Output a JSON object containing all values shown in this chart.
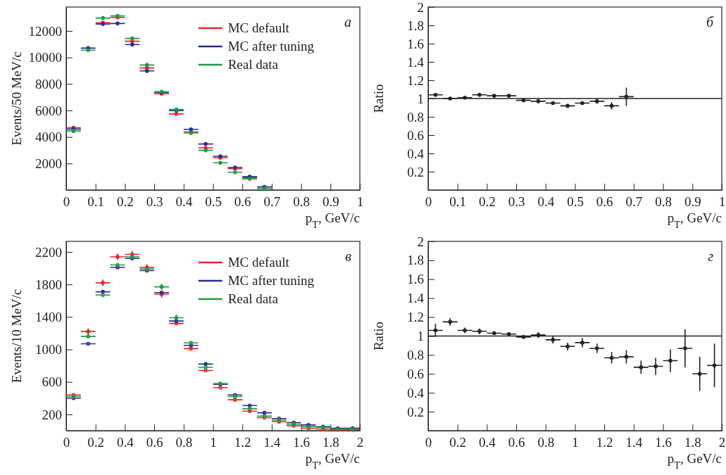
{
  "chart_data": [
    {
      "type": "scatter",
      "marker": "circle",
      "xlabel": "p$_{T}$, GeV/c",
      "ylabel": "Events/50 MeV/c",
      "annotations": [
        "а"
      ],
      "legend": "top right",
      "xlim": [
        0,
        1
      ],
      "xticks": [
        0,
        0.1,
        0.2,
        0.3,
        0.4,
        0.5,
        0.6,
        0.7,
        0.8,
        0.9,
        1
      ],
      "ylim": [
        0,
        13800
      ],
      "yticks": [
        2000,
        4000,
        6000,
        8000,
        10000,
        12000
      ],
      "x": [
        0.025,
        0.075,
        0.125,
        0.175,
        0.225,
        0.275,
        0.325,
        0.375,
        0.425,
        0.475,
        0.525,
        0.575,
        0.625,
        0.675
      ],
      "series": [
        {
          "name": "MC default",
          "color": "#e8262a",
          "values": [
            4700,
            null,
            12620,
            13020,
            11220,
            9200,
            7260,
            5740,
            4380,
            3170,
            2430,
            1610,
            920,
            null
          ],
          "errors": [
            150,
            null,
            150,
            150,
            150,
            150,
            null,
            null,
            100,
            100,
            100,
            null,
            null,
            null
          ],
          "xerrors": [
            0.025,
            null,
            0.025,
            0.025,
            0.025,
            0.025,
            0.025,
            0.025,
            0.025,
            0.025,
            0.025,
            0.025,
            0.025,
            null
          ]
        },
        {
          "name": "MC after tuning",
          "color": "#2b2d8f",
          "values": [
            4600,
            10700,
            12520,
            12560,
            10970,
            8980,
            7350,
            5990,
            4580,
            3470,
            2550,
            1700,
            1000,
            230
          ],
          "errors": [
            150,
            null,
            150,
            150,
            150,
            150,
            null,
            null,
            100,
            100,
            100,
            null,
            null,
            null
          ],
          "xerrors": [
            0.025,
            0.025,
            0.025,
            0.025,
            0.025,
            0.025,
            0.025,
            0.025,
            0.025,
            0.025,
            0.025,
            0.025,
            0.025,
            0.025
          ]
        },
        {
          "name": "Real data",
          "color": "#1f9a48",
          "values": [
            4450,
            10550,
            12970,
            13130,
            11430,
            9430,
            7410,
            6080,
            4300,
            2990,
            2060,
            1340,
            840,
            120
          ],
          "errors": [
            150,
            null,
            150,
            150,
            150,
            150,
            null,
            null,
            100,
            100,
            100,
            null,
            null,
            null
          ],
          "xerrors": [
            0.025,
            0.025,
            0.025,
            0.025,
            0.025,
            0.025,
            0.025,
            0.025,
            0.025,
            0.025,
            0.025,
            0.025,
            0.025,
            0.025
          ]
        }
      ]
    },
    {
      "type": "scatter",
      "marker": "circle",
      "xlabel": "p$_{T}$, GeV/c",
      "ylabel": "Ratio",
      "annotations": [
        "б"
      ],
      "xlim": [
        0,
        1
      ],
      "xticks": [
        0,
        0.1,
        0.2,
        0.3,
        0.4,
        0.5,
        0.6,
        0.7,
        0.8,
        0.9,
        1
      ],
      "ylim": [
        0,
        2
      ],
      "yticks": [
        0.2,
        0.4,
        0.6,
        0.8,
        1,
        1.2,
        1.4,
        1.6,
        1.8,
        2
      ],
      "ref_lines": [
        {
          "axis": "y",
          "value": 1,
          "color": "#222222"
        }
      ],
      "x": [
        0.025,
        0.075,
        0.125,
        0.175,
        0.225,
        0.275,
        0.325,
        0.375,
        0.425,
        0.475,
        0.525,
        0.575,
        0.625,
        0.675
      ],
      "series": [
        {
          "color": "#222222",
          "values": [
            1.04,
            1.0,
            1.01,
            1.04,
            1.03,
            1.03,
            0.98,
            0.97,
            0.95,
            0.92,
            0.95,
            0.97,
            0.92,
            1.02
          ],
          "errors": [
            0.02,
            0.015,
            0.015,
            0.015,
            0.015,
            0.015,
            0.015,
            0.015,
            0.015,
            0.02,
            0.02,
            0.025,
            0.04,
            0.1
          ],
          "xerrors": [
            0.025,
            0.025,
            0.025,
            0.025,
            0.025,
            0.025,
            0.025,
            0.025,
            0.025,
            0.025,
            0.025,
            0.025,
            0.025,
            0.025
          ]
        }
      ]
    },
    {
      "type": "scatter",
      "marker": "circle",
      "xlabel": "p$_{T}$, GeV/c",
      "ylabel": "Events/10 MeV/c",
      "annotations": [
        "в"
      ],
      "legend": "top right",
      "xlim": [
        0,
        2
      ],
      "xticks": [
        0,
        0.2,
        0.4,
        0.6,
        0.8,
        1,
        1.2,
        1.4,
        1.6,
        1.8,
        2
      ],
      "ylim": [
        0,
        2330
      ],
      "yticks": [
        200,
        600,
        1000,
        1400,
        1800,
        2200
      ],
      "x": [
        0.05,
        0.15,
        0.25,
        0.35,
        0.45,
        0.55,
        0.65,
        0.75,
        0.85,
        0.95,
        1.05,
        1.15,
        1.25,
        1.35,
        1.45,
        1.55,
        1.65,
        1.75,
        1.85,
        1.95
      ],
      "series": [
        {
          "name": "MC default",
          "color": "#e8262a",
          "values": [
            440,
            1220,
            1820,
            2140,
            2170,
            2010,
            1680,
            1320,
            1010,
            740,
            530,
            380,
            240,
            160,
            110,
            60,
            30,
            20,
            10,
            10
          ],
          "errors": [
            null,
            40,
            40,
            40,
            40,
            40,
            40,
            null,
            null,
            null,
            null,
            null,
            null,
            null,
            null,
            null,
            null,
            null,
            null,
            null
          ],
          "xerrors": [
            0.05,
            0.05,
            0.05,
            0.05,
            0.05,
            0.05,
            0.05,
            0.05,
            0.05,
            0.05,
            0.05,
            0.05,
            0.05,
            0.05,
            0.05,
            0.05,
            0.05,
            0.05,
            0.05,
            0.05
          ]
        },
        {
          "name": "MC after tuning",
          "color": "#2b2d8f",
          "values": [
            400,
            1070,
            1710,
            2010,
            2120,
            1970,
            1700,
            1350,
            1050,
            820,
            570,
            440,
            310,
            220,
            150,
            100,
            70,
            50,
            30,
            30
          ],
          "errors": [
            null,
            null,
            null,
            null,
            null,
            null,
            null,
            null,
            null,
            null,
            null,
            null,
            null,
            null,
            null,
            null,
            null,
            null,
            null,
            null
          ],
          "xerrors": [
            0.05,
            0.05,
            0.05,
            0.05,
            0.05,
            0.05,
            0.05,
            0.05,
            0.05,
            0.05,
            0.05,
            0.05,
            0.05,
            0.05,
            0.05,
            0.05,
            0.05,
            0.05,
            0.05,
            0.05
          ]
        },
        {
          "name": "Real data",
          "color": "#1f9a48",
          "values": [
            420,
            1160,
            1670,
            2040,
            2140,
            1990,
            1770,
            1390,
            1080,
            780,
            580,
            420,
            270,
            180,
            130,
            80,
            50,
            40,
            20,
            20
          ],
          "errors": [
            null,
            null,
            null,
            null,
            null,
            null,
            40,
            40,
            null,
            null,
            null,
            null,
            null,
            null,
            null,
            null,
            null,
            null,
            null,
            null
          ],
          "xerrors": [
            0.05,
            0.05,
            0.05,
            0.05,
            0.05,
            0.05,
            0.05,
            0.05,
            0.05,
            0.05,
            0.05,
            0.05,
            0.05,
            0.05,
            0.05,
            0.05,
            0.05,
            0.05,
            0.05,
            0.05
          ]
        }
      ]
    },
    {
      "type": "scatter",
      "marker": "circle",
      "xlabel": "p$_{T}$, GeV/c",
      "ylabel": "Ratio",
      "annotations": [
        "г"
      ],
      "xlim": [
        0,
        2
      ],
      "xticks": [
        0,
        0.2,
        0.4,
        0.6,
        0.8,
        1,
        1.2,
        1.4,
        1.6,
        1.8,
        2
      ],
      "ylim": [
        0,
        2
      ],
      "yticks": [
        0.2,
        0.4,
        0.6,
        0.8,
        1,
        1.2,
        1.4,
        1.6,
        1.8,
        2
      ],
      "ref_lines": [
        {
          "axis": "y",
          "value": 1,
          "color": "#222222"
        }
      ],
      "x": [
        0.05,
        0.15,
        0.25,
        0.35,
        0.45,
        0.55,
        0.65,
        0.75,
        0.85,
        0.95,
        1.05,
        1.15,
        1.25,
        1.35,
        1.45,
        1.55,
        1.65,
        1.75,
        1.85,
        1.95
      ],
      "series": [
        {
          "color": "#222222",
          "values": [
            1.06,
            1.15,
            1.06,
            1.05,
            1.03,
            1.02,
            0.99,
            1.01,
            0.96,
            0.89,
            0.93,
            0.87,
            0.77,
            0.78,
            0.67,
            0.68,
            0.74,
            0.87,
            0.6,
            0.69
          ],
          "errors": [
            0.07,
            0.04,
            0.03,
            0.03,
            0.02,
            0.02,
            0.02,
            0.03,
            0.04,
            0.04,
            0.05,
            0.05,
            0.06,
            0.07,
            0.07,
            0.09,
            0.12,
            0.2,
            0.18,
            0.23
          ],
          "xerrors": [
            0.05,
            0.05,
            0.05,
            0.05,
            0.05,
            0.05,
            0.05,
            0.05,
            0.05,
            0.05,
            0.05,
            0.05,
            0.05,
            0.05,
            0.05,
            0.05,
            0.05,
            0.05,
            0.05,
            0.05
          ]
        }
      ]
    }
  ]
}
